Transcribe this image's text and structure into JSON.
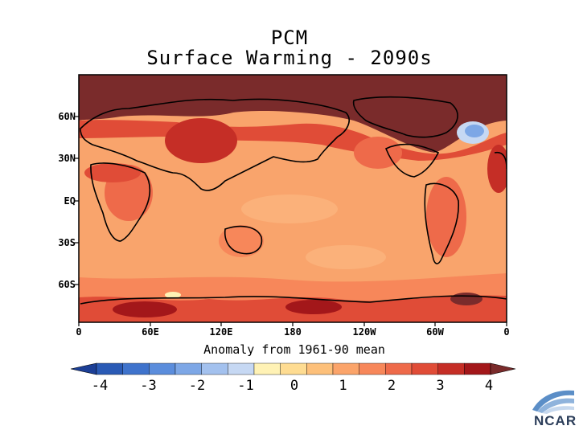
{
  "title": {
    "line1": "PCM",
    "line2": "Surface Warming - 2090s"
  },
  "map": {
    "lat_labels": [
      "60N",
      "30N",
      "EQ",
      "30S",
      "60S"
    ],
    "lon_labels": [
      "0",
      "60E",
      "120E",
      "180",
      "120W",
      "60W",
      "0"
    ],
    "xlabel": "Anomaly from 1961-90 mean"
  },
  "colorbar": {
    "ticks": [
      "-4",
      "-3",
      "-2",
      "-1",
      "0",
      "1",
      "2",
      "3",
      "4"
    ],
    "colors": [
      "#1c3f96",
      "#2a5ab5",
      "#3f73cc",
      "#5b8ddc",
      "#7da7e6",
      "#a3c1ee",
      "#c6d8f3",
      "#fff2b5",
      "#fedc92",
      "#fdc07a",
      "#fba46a",
      "#f7875a",
      "#ee6a4a",
      "#e04c37",
      "#c52e26",
      "#a3171a",
      "#7a2b2b"
    ]
  },
  "logo": {
    "text": "NCAR"
  }
}
